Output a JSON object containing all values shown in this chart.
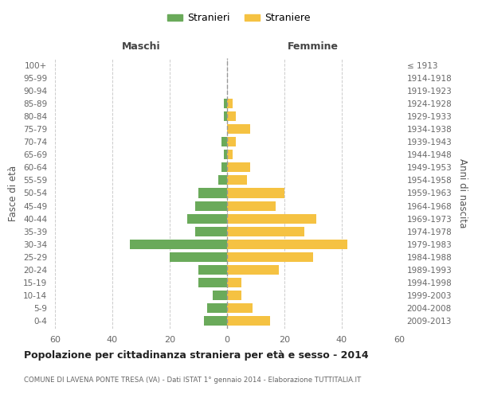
{
  "age_groups": [
    "0-4",
    "5-9",
    "10-14",
    "15-19",
    "20-24",
    "25-29",
    "30-34",
    "35-39",
    "40-44",
    "45-49",
    "50-54",
    "55-59",
    "60-64",
    "65-69",
    "70-74",
    "75-79",
    "80-84",
    "85-89",
    "90-94",
    "95-99",
    "100+"
  ],
  "birth_years": [
    "2009-2013",
    "2004-2008",
    "1999-2003",
    "1994-1998",
    "1989-1993",
    "1984-1988",
    "1979-1983",
    "1974-1978",
    "1969-1973",
    "1964-1968",
    "1959-1963",
    "1954-1958",
    "1949-1953",
    "1944-1948",
    "1939-1943",
    "1934-1938",
    "1929-1933",
    "1924-1928",
    "1919-1923",
    "1914-1918",
    "≤ 1913"
  ],
  "males": [
    8,
    7,
    5,
    10,
    10,
    20,
    34,
    11,
    14,
    11,
    10,
    3,
    2,
    1,
    2,
    0,
    1,
    1,
    0,
    0,
    0
  ],
  "females": [
    15,
    9,
    5,
    5,
    18,
    30,
    42,
    27,
    31,
    17,
    20,
    7,
    8,
    2,
    3,
    8,
    3,
    2,
    0,
    0,
    0
  ],
  "male_color": "#6aaa5a",
  "female_color": "#f5c242",
  "background_color": "#ffffff",
  "grid_color": "#cccccc",
  "center_line_color": "#999999",
  "title": "Popolazione per cittadinanza straniera per età e sesso - 2014",
  "subtitle": "COMUNE DI LAVENA PONTE TRESA (VA) - Dati ISTAT 1° gennaio 2014 - Elaborazione TUTTITALIA.IT",
  "xlabel_left": "Maschi",
  "xlabel_right": "Femmine",
  "ylabel_left": "Fasce di età",
  "ylabel_right": "Anni di nascita",
  "legend_male": "Stranieri",
  "legend_female": "Straniere",
  "xlim": 60,
  "bar_height": 0.75
}
